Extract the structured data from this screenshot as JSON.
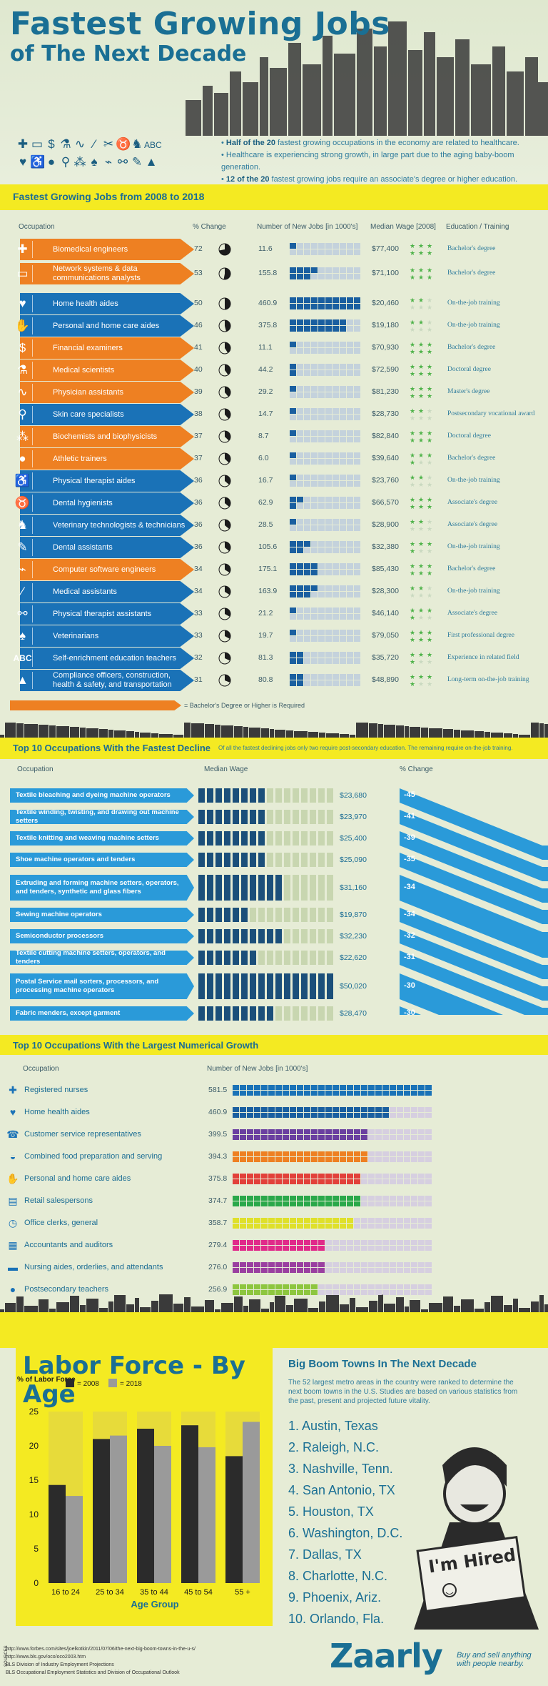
{
  "header": {
    "title_line1": "Fastest Growing Jobs",
    "title_line2": "of The Next Decade",
    "bullets": [
      {
        "bold": "Half of the 20",
        "rest": " fastest growing occupations in the economy are related to healthcare."
      },
      {
        "bold": "",
        "rest": "Healthcare is experiencing strong growth, in large part due to the aging baby-boom generation."
      },
      {
        "bold": "12 of the 20",
        "rest": " fastest growing jobs require an associate's degree or higher education."
      }
    ],
    "icon_text": "ABC"
  },
  "colors": {
    "orange": "#ee8022",
    "blue": "#1a72b7",
    "navy": "#1b4f7a",
    "yellow": "#f4ea22",
    "green": "#4fb34a",
    "sky": "#2a9ad9"
  },
  "fastest": {
    "title": "Fastest Growing Jobs from 2008 to 2018",
    "headers": {
      "occupation": "Occupation",
      "pct": "% Change",
      "jobs": "Number of New Jobs [in 1000's]",
      "wage": "Median Wage [2008]",
      "edu": "Education / Training"
    },
    "footnote": "= Bachelor's Degree or Higher is Required",
    "rows": [
      {
        "name": "Biomedical engineers",
        "pct": "72",
        "jobs": "11.6",
        "wage": "$77,400",
        "edu": "Bachelor's degree",
        "color": "orange",
        "icon": "plus-icon"
      },
      {
        "name": "Network systems & data communications analysts",
        "pct": "53",
        "jobs": "155.8",
        "wage": "$71,100",
        "edu": "Bachelor's degree",
        "color": "orange",
        "icon": "computer-icon"
      },
      {
        "name": "Home health aides",
        "pct": "50",
        "jobs": "460.9",
        "wage": "$20,460",
        "edu": "On-the-job training",
        "color": "blue",
        "icon": "heart-icon"
      },
      {
        "name": "Personal and home care aides",
        "pct": "46",
        "jobs": "375.8",
        "wage": "$19,180",
        "edu": "On-the-job training",
        "color": "blue",
        "icon": "hand-icon"
      },
      {
        "name": "Financial examiners",
        "pct": "41",
        "jobs": "11.1",
        "wage": "$70,930",
        "edu": "Bachelor's degree",
        "color": "orange",
        "icon": "dollar-icon"
      },
      {
        "name": "Medical scientists",
        "pct": "40",
        "jobs": "44.2",
        "wage": "$72,590",
        "edu": "Doctoral degree",
        "color": "orange",
        "icon": "flask-icon"
      },
      {
        "name": "Physician assistants",
        "pct": "39",
        "jobs": "29.2",
        "wage": "$81,230",
        "edu": "Master's degree",
        "color": "orange",
        "icon": "stethoscope-icon"
      },
      {
        "name": "Skin care specialists",
        "pct": "38",
        "jobs": "14.7",
        "wage": "$28,730",
        "edu": "Postsecondary vocational award",
        "color": "blue",
        "icon": "magnifier-icon"
      },
      {
        "name": "Biochemists and biophysicists",
        "pct": "37",
        "jobs": "8.7",
        "wage": "$82,840",
        "edu": "Doctoral degree",
        "color": "orange",
        "icon": "molecule-icon"
      },
      {
        "name": "Athletic trainers",
        "pct": "37",
        "jobs": "6.0",
        "wage": "$39,640",
        "edu": "Bachelor's degree",
        "color": "orange",
        "icon": "ball-icon"
      },
      {
        "name": "Physical therapist aides",
        "pct": "36",
        "jobs": "16.7",
        "wage": "$23,760",
        "edu": "On-the-job training",
        "color": "blue",
        "icon": "walker-icon"
      },
      {
        "name": "Dental hygienists",
        "pct": "36",
        "jobs": "62.9",
        "wage": "$66,570",
        "edu": "Associate's degree",
        "color": "blue",
        "icon": "tooth-icon"
      },
      {
        "name": "Veterinary technologists & technicians",
        "pct": "36",
        "jobs": "28.5",
        "wage": "$28,900",
        "edu": "Associate's degree",
        "color": "blue",
        "icon": "dog-icon"
      },
      {
        "name": "Dental assistants",
        "pct": "36",
        "jobs": "105.6",
        "wage": "$32,380",
        "edu": "On-the-job training",
        "color": "blue",
        "icon": "dental-tool-icon"
      },
      {
        "name": "Computer software engineers",
        "pct": "34",
        "jobs": "175.1",
        "wage": "$85,430",
        "edu": "Bachelor's degree",
        "color": "orange",
        "icon": "mouse-icon"
      },
      {
        "name": "Medical assistants",
        "pct": "34",
        "jobs": "163.9",
        "wage": "$28,300",
        "edu": "On-the-job training",
        "color": "blue",
        "icon": "syringe-icon"
      },
      {
        "name": "Physical therapist assistants",
        "pct": "33",
        "jobs": "21.2",
        "wage": "$46,140",
        "edu": "Associate's degree",
        "color": "blue",
        "icon": "weights-icon"
      },
      {
        "name": "Veterinarians",
        "pct": "33",
        "jobs": "19.7",
        "wage": "$79,050",
        "edu": "First professional degree",
        "color": "blue",
        "icon": "cat-icon"
      },
      {
        "name": "Self-enrichment education teachers",
        "pct": "32",
        "jobs": "81.3",
        "wage": "$35,720",
        "edu": "Experience in related field",
        "color": "blue",
        "icon": "abc-icon"
      },
      {
        "name": "Compliance officers, construction, health & safety, and transportation",
        "pct": "31",
        "jobs": "80.8",
        "wage": "$48,890",
        "edu": "Long-term on-the-job training",
        "color": "blue",
        "icon": "cone-icon"
      }
    ]
  },
  "decline": {
    "title": "Top 10 Occupations With the Fastest Decline",
    "subtitle": "Of all the fastest declining jobs only two require post-secondary education. The remaining require on-the-job training.",
    "headers": {
      "occupation": "Occupation",
      "wage": "Median Wage",
      "pct": "% Change"
    },
    "rows": [
      {
        "name": "Textile bleaching and dyeing machine operators",
        "wage": "$23,680",
        "pct": "-45",
        "wage_num": 23680
      },
      {
        "name": "Textile winding, twisting, and drawing out machine setters",
        "wage": "$23,970",
        "pct": "-41",
        "wage_num": 23970
      },
      {
        "name": "Textile knitting and weaving machine setters",
        "wage": "$25,400",
        "pct": "-39",
        "wage_num": 25400
      },
      {
        "name": "Shoe machine operators and tenders",
        "wage": "$25,090",
        "pct": "-35",
        "wage_num": 25090
      },
      {
        "name": "Extruding and forming machine setters, operators, and tenders, synthetic and glass fibers",
        "wage": "$31,160",
        "pct": "-34",
        "wage_num": 31160
      },
      {
        "name": "Sewing machine operators",
        "wage": "$19,870",
        "pct": "-34",
        "wage_num": 19870
      },
      {
        "name": "Semiconductor processors",
        "wage": "$32,230",
        "pct": "-32",
        "wage_num": 32230
      },
      {
        "name": "Textile cutting machine setters, operators, and tenders",
        "wage": "$22,620",
        "pct": "-31",
        "wage_num": 22620
      },
      {
        "name": "Postal Service mail sorters, processors, and processing machine operators",
        "wage": "$50,020",
        "pct": "-30",
        "wage_num": 50020
      },
      {
        "name": "Fabric menders, except garment",
        "wage": "$28,470",
        "pct": "-30",
        "wage_num": 28470
      }
    ]
  },
  "growth": {
    "title": "Top 10 Occupations With the Largest Numerical Growth",
    "headers": {
      "occupation": "Occupation",
      "jobs": "Number of New Jobs [in 1000's]"
    },
    "rows": [
      {
        "name": "Registered nurses",
        "jobs": "581.5",
        "value": 581.5,
        "color": "#1a72b7",
        "icon": "nurse-icon"
      },
      {
        "name": "Home health aides",
        "jobs": "460.9",
        "value": 460.9,
        "color": "#1a5fa0",
        "icon": "heart-icon"
      },
      {
        "name": "Customer service representatives",
        "jobs": "399.5",
        "value": 399.5,
        "color": "#6a3fa0",
        "icon": "phone-icon"
      },
      {
        "name": "Combined food preparation and serving",
        "jobs": "394.3",
        "value": 394.3,
        "color": "#ee8022",
        "icon": "food-icon"
      },
      {
        "name": "Personal and home care aides",
        "jobs": "375.8",
        "value": 375.8,
        "color": "#e2403a",
        "icon": "hand-icon"
      },
      {
        "name": "Retail salespersons",
        "jobs": "374.7",
        "value": 374.7,
        "color": "#2aa84a",
        "icon": "register-icon"
      },
      {
        "name": "Office clerks, general",
        "jobs": "358.7",
        "value": 358.7,
        "color": "#dfe02a",
        "icon": "clock-icon"
      },
      {
        "name": "Accountants and auditors",
        "jobs": "279.4",
        "value": 279.4,
        "color": "#e02a8a",
        "icon": "calculator-icon"
      },
      {
        "name": "Nursing aides, orderlies, and attendants",
        "jobs": "276.0",
        "value": 276.0,
        "color": "#9a3fa0",
        "icon": "bed-icon"
      },
      {
        "name": "Postsecondary teachers",
        "jobs": "256.9",
        "value": 256.9,
        "color": "#8dc63f",
        "icon": "apple-icon"
      }
    ]
  },
  "chart_data": {
    "type": "bar",
    "title": "Labor Force - By Age",
    "ylabel": "% of Labor Force",
    "xlabel": "Age Group",
    "categories": [
      "16 to 24",
      "25 to 34",
      "35 to 44",
      "45 to 54",
      "55 +"
    ],
    "series": [
      {
        "name": "= 2008",
        "values": [
          14.3,
          21.0,
          22.5,
          23.0,
          18.5
        ]
      },
      {
        "name": "= 2018",
        "values": [
          12.7,
          21.5,
          20.0,
          19.8,
          23.5
        ]
      }
    ],
    "ylim": [
      0,
      25
    ],
    "yticks": [
      0,
      5,
      10,
      15,
      20,
      25
    ],
    "colors": [
      "#2b2b2b",
      "#9a9a9a"
    ],
    "legend": "top"
  },
  "boom": {
    "title": "Big Boom Towns In The Next Decade",
    "desc": "The 52 largest metro areas in the country were ranked to determine the next boom towns in the U.S. Studies are based on various statistics from the past, present and projected future vitality.",
    "towns": [
      "1. Austin, Texas",
      "2. Raleigh, N.C.",
      "3. Nashville, Tenn.",
      "4. San Antonio, TX",
      "5. Houston, TX",
      "6. Washington, D.C.",
      "7. Dallas, TX",
      "8. Charlotte, N.C.",
      "9. Phoenix, Ariz.",
      "10. Orlando, Fla."
    ],
    "sign": "I'm Hired"
  },
  "footer": {
    "sources_label": "SOURCES",
    "sources": [
      "http://www.forbes.com/sites/joelkotkin/2011/07/06/the-next-big-boom-towns-in-the-u-s/",
      "http://www.bls.gov/oco/oco2003.htm",
      "BLS Division of Industry Employment Projections",
      "BLS Occupational Employment Statistics and Division of Occupational Outlook"
    ],
    "brand": "Zaarly",
    "tagline": "Buy and sell anything with people nearby."
  }
}
